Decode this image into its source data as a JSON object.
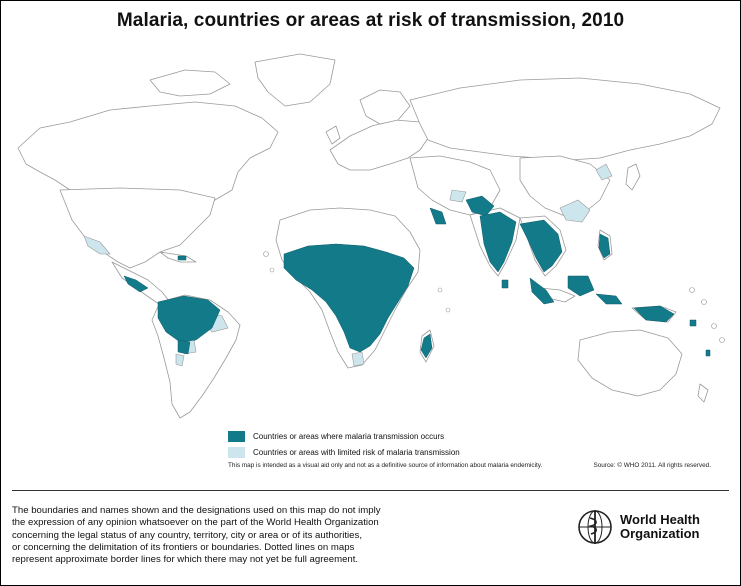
{
  "title": "Malaria, countries or areas at risk of transmission, 2010",
  "legend": [
    {
      "label": "Countries or areas where malaria transmission occurs",
      "color": "#137a8a"
    },
    {
      "label": "Countries or areas with limited risk of malaria transmission",
      "color": "#cde5ec"
    }
  ],
  "legend_note": "This map is intended as a visual aid only and not as a definitive source of information about malaria endemicity.",
  "source": "Source: © WHO 2011. All rights reserved.",
  "disclaimer": [
    "The boundaries and names shown and the designations used on this map do not imply",
    "the expression of any opinion whatsoever on the part of the World Health Organization",
    "concerning the legal status of any country, territory, city or area or of its authorities,",
    "or concerning the delimitation of its frontiers or boundaries.  Dotted lines on maps",
    "represent approximate border lines for which there may not yet be full agreement."
  ],
  "logo": {
    "line1": "World Health",
    "line2": "Organization"
  },
  "colors": {
    "land": "#ffffff",
    "outline": "#9a9a9a",
    "risk": "#137a8a",
    "limited": "#cde5ec",
    "ocean": "#ffffff"
  }
}
